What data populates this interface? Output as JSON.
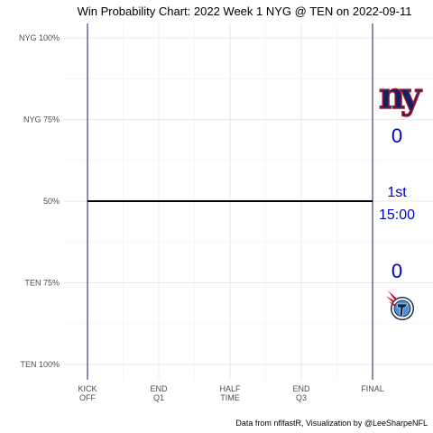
{
  "chart_data": {
    "type": "line",
    "title": "Win Probability Chart: 2022 Week 1 NYG @ TEN on 2022-09-11",
    "caption": "Data from nflfastR, Visualization by @LeeSharpeNFL",
    "xlabel": "",
    "ylabel": "",
    "x_ticks": [
      {
        "value": 0,
        "lines": [
          "KICK",
          "OFF"
        ]
      },
      {
        "value": 900,
        "lines": [
          "END",
          "Q1"
        ]
      },
      {
        "value": 1800,
        "lines": [
          "HALF",
          "TIME"
        ]
      },
      {
        "value": 2700,
        "lines": [
          "END",
          "Q3"
        ]
      },
      {
        "value": 3600,
        "lines": [
          "FINAL"
        ]
      }
    ],
    "y_ticks": [
      {
        "value": 1.0,
        "label": "NYG 100%"
      },
      {
        "value": 0.75,
        "label": "NYG 75%"
      },
      {
        "value": 0.5,
        "label": "50%"
      },
      {
        "value": 0.25,
        "label": "TEN 75%"
      },
      {
        "value": 0.0,
        "label": "TEN 100%"
      }
    ],
    "xlim": [
      0,
      3600
    ],
    "ylim": [
      0,
      1
    ],
    "grid": true,
    "series": [
      {
        "x": [
          0,
          3600
        ],
        "values": [
          0.5,
          0.5
        ],
        "color": "#000000"
      }
    ],
    "vertical_lines": [
      0,
      3600
    ],
    "vline_color": "#1a1a66",
    "annotations": {
      "away_score": "0",
      "home_score": "0",
      "period": "1st",
      "clock": "15:00",
      "away_logo_text": "ny",
      "score_color": "#0000cc"
    },
    "colors": {
      "nyg_blue": "#0b2265",
      "nyg_red": "#a71930",
      "ten_navy": "#0c2340",
      "ten_light_blue": "#4b92db",
      "ten_red": "#c8102e"
    }
  }
}
